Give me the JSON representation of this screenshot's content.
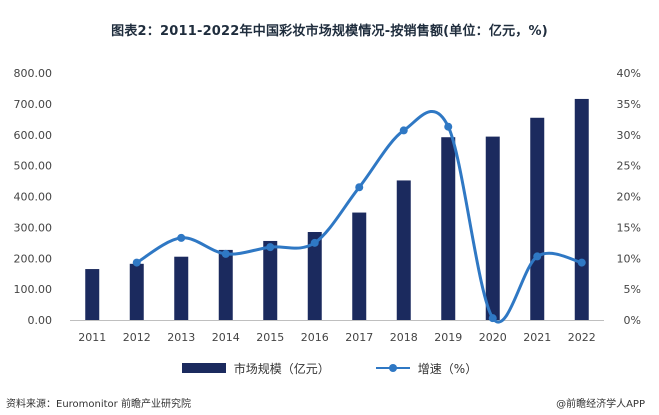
{
  "title": "图表2：2011-2022年中国彩妆市场规模情况-按销售额(单位：亿元，%)",
  "source": "资料来源：Euromonitor 前瞻产业研究院",
  "brand": "@前瞻经济学人APP",
  "colors": {
    "bar": "#1b2a5e",
    "line": "#2f78c4",
    "axis": "#bfbfbf"
  },
  "chart_data": {
    "type": "bar",
    "categories": [
      "2011",
      "2012",
      "2013",
      "2014",
      "2015",
      "2016",
      "2017",
      "2018",
      "2019",
      "2020",
      "2021",
      "2022"
    ],
    "series": [
      {
        "name": "市场规模（亿元）",
        "type": "bar",
        "axis": "left",
        "values": [
          165,
          182,
          205,
          227,
          256,
          285,
          348,
          452,
          592,
          594,
          655,
          716
        ]
      },
      {
        "name": "增速（%）",
        "type": "line",
        "axis": "right",
        "smooth": true,
        "values": [
          null,
          9.3,
          13.3,
          10.7,
          11.8,
          12.5,
          21.5,
          30.7,
          31.3,
          0.3,
          10.3,
          9.3
        ]
      }
    ],
    "y_left": {
      "min": 0,
      "max": 800,
      "step": 100,
      "ticks": [
        "0.00",
        "100.00",
        "200.00",
        "300.00",
        "400.00",
        "500.00",
        "600.00",
        "700.00",
        "800.00"
      ]
    },
    "y_right": {
      "min": 0,
      "max": 40,
      "step": 5,
      "ticks": [
        "0%",
        "5%",
        "10%",
        "15%",
        "20%",
        "25%",
        "30%",
        "35%",
        "40%"
      ]
    },
    "legend_position": "bottom",
    "grid": false
  }
}
